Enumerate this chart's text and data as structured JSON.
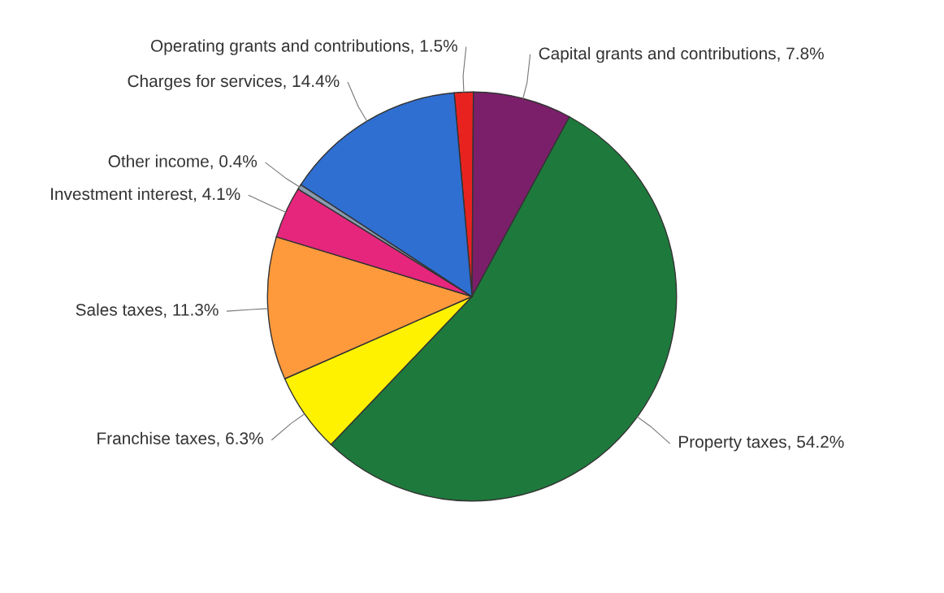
{
  "chart_data": {
    "type": "pie",
    "categories": [
      "Operating grants and contributions",
      "Capital grants and contributions",
      "Property taxes",
      "Franchise taxes",
      "Sales taxes",
      "Investment interest",
      "Other income",
      "Charges for services"
    ],
    "values": [
      1.5,
      7.8,
      54.2,
      6.3,
      11.3,
      4.1,
      0.4,
      14.4
    ],
    "value_labels": [
      "1.5%",
      "7.8%",
      "54.2%",
      "6.3%",
      "11.3%",
      "4.1%",
      "0.4%",
      "14.4%"
    ],
    "colors": [
      "#e8231f",
      "#7b1f6a",
      "#1e7a3c",
      "#fff200",
      "#ff9a3c",
      "#e6267d",
      "#8a9bb0",
      "#2f6fd1"
    ]
  }
}
